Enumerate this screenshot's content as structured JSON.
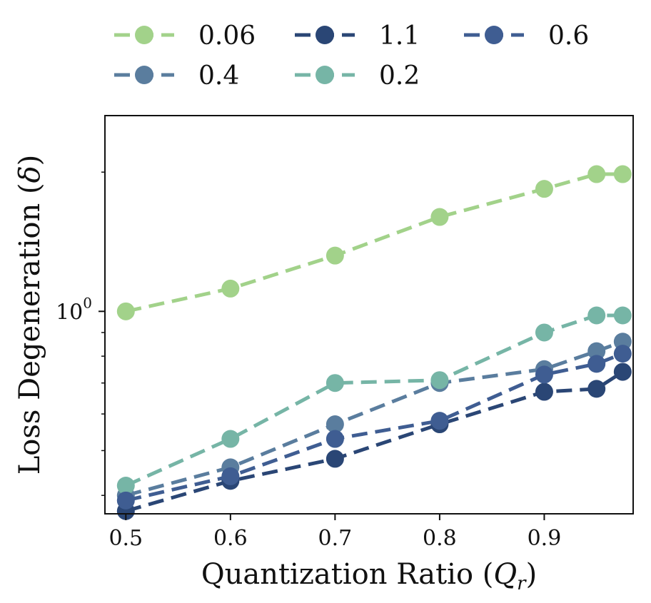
{
  "chart_data": {
    "type": "line",
    "title": "",
    "xlabel": "Quantization Ratio (Q_r)",
    "xlabel_main": "Quantization Ratio (",
    "xlabel_symbol": "Q",
    "xlabel_subscript": "r",
    "xlabel_close": ")",
    "ylabel": "Loss Degeneration (δ)",
    "ylabel_main": "Loss Degeneration (",
    "ylabel_symbol": "δ",
    "ylabel_close": ")",
    "yscale": "log",
    "xlim": [
      0.48,
      0.985
    ],
    "ylim": [
      0.365,
      2.65
    ],
    "x_ticks": [
      "0.5",
      "0.6",
      "0.7",
      "0.8",
      "0.9"
    ],
    "y_tick_base": "10",
    "y_tick_exp": "0",
    "legend_position": "top",
    "x": [
      0.5,
      0.6,
      0.7,
      0.8,
      0.9,
      0.95,
      0.975
    ],
    "series": [
      {
        "name": "0.06",
        "color": "#a2d28a",
        "values": [
          1.0,
          1.12,
          1.32,
          1.6,
          1.84,
          1.98,
          1.98
        ]
      },
      {
        "name": "0.4",
        "color": "#5a7d9e",
        "values": [
          0.4,
          0.46,
          0.57,
          0.7,
          0.75,
          0.82,
          0.86
        ]
      },
      {
        "name": "1.1",
        "color": "#2a4675",
        "values": [
          0.37,
          0.43,
          0.48,
          0.57,
          0.67,
          0.68,
          0.74
        ]
      },
      {
        "name": "0.2",
        "color": "#76b5a6",
        "values": [
          0.42,
          0.53,
          0.7,
          0.71,
          0.9,
          0.98,
          0.98
        ]
      },
      {
        "name": "0.6",
        "color": "#3f5d92",
        "values": [
          0.39,
          0.44,
          0.53,
          0.58,
          0.73,
          0.77,
          0.81
        ]
      }
    ]
  }
}
